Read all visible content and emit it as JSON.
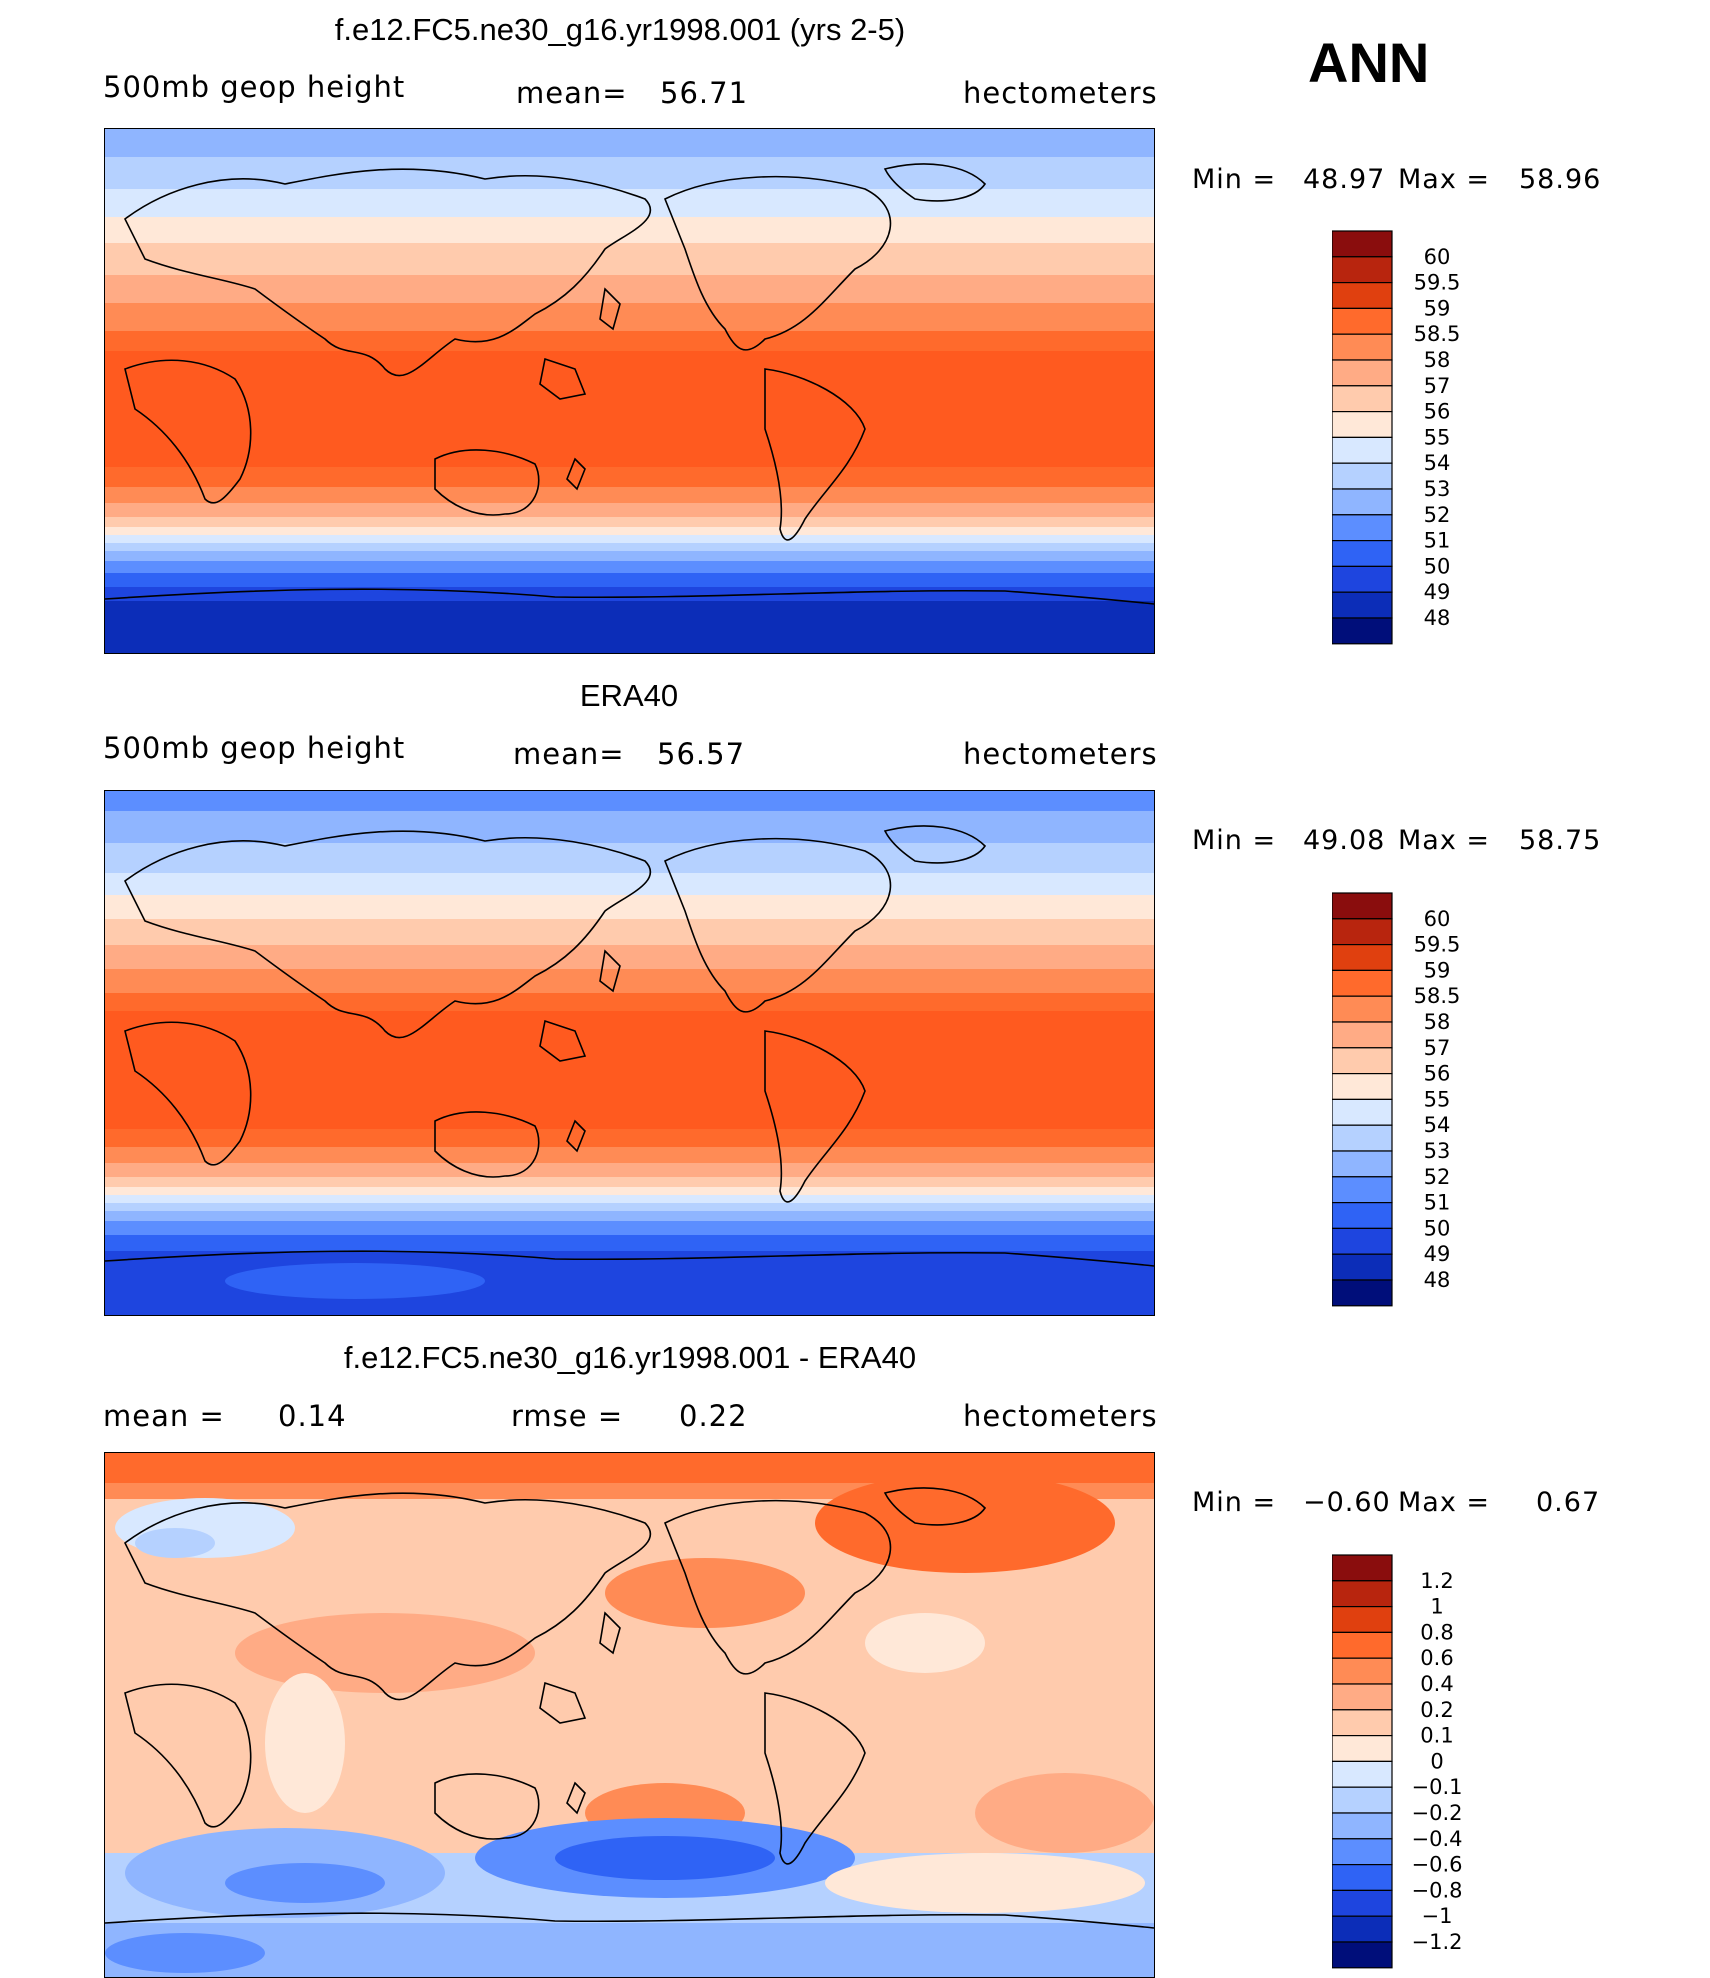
{
  "overall_label": "ANN",
  "chart_data": [
    {
      "type": "heatmap",
      "title": "f.e12.FC5.ne30_g16.yr1998.001 (yrs 2-5)",
      "left_label": "500mb geop height",
      "center_label": "mean=",
      "center_value": "56.71",
      "units": "hectometers",
      "min_label": "Min =",
      "min_value": "48.97",
      "max_label": "Max =",
      "max_value": "58.96",
      "levels": [
        "60",
        "59.5",
        "59",
        "58.5",
        "58",
        "57",
        "56",
        "55",
        "54",
        "53",
        "52",
        "51",
        "50",
        "49",
        "48"
      ],
      "colors": [
        "#8a0d0d",
        "#b8250e",
        "#e0400f",
        "#ff6a2c",
        "#ff8b55",
        "#ffab85",
        "#ffcbad",
        "#ffe8d8",
        "#d8e8ff",
        "#b5d1ff",
        "#8fb5ff",
        "#5c8eff",
        "#2f63f5",
        "#1e45df",
        "#0c2db8",
        "#000e7a"
      ]
    },
    {
      "type": "heatmap",
      "title": "ERA40",
      "left_label": "500mb geop height",
      "center_label": "mean=",
      "center_value": "56.57",
      "units": "hectometers",
      "min_label": "Min =",
      "min_value": "49.08",
      "max_label": "Max =",
      "max_value": "58.75",
      "levels": [
        "60",
        "59.5",
        "59",
        "58.5",
        "58",
        "57",
        "56",
        "55",
        "54",
        "53",
        "52",
        "51",
        "50",
        "49",
        "48"
      ],
      "colors": [
        "#8a0d0d",
        "#b8250e",
        "#e0400f",
        "#ff6a2c",
        "#ff8b55",
        "#ffab85",
        "#ffcbad",
        "#ffe8d8",
        "#d8e8ff",
        "#b5d1ff",
        "#8fb5ff",
        "#5c8eff",
        "#2f63f5",
        "#1e45df",
        "#0c2db8",
        "#000e7a"
      ]
    },
    {
      "type": "heatmap",
      "title": "f.e12.FC5.ne30_g16.yr1998.001 - ERA40",
      "left_label": "mean =",
      "left_value": "0.14",
      "center_label": "rmse =",
      "center_value": "0.22",
      "units": "hectometers",
      "min_label": "Min =",
      "min_value": "−0.60",
      "max_label": "Max =",
      "max_value": "0.67",
      "levels": [
        "1.2",
        "1",
        "0.8",
        "0.6",
        "0.4",
        "0.2",
        "0.1",
        "0",
        "−0.1",
        "−0.2",
        "−0.4",
        "−0.6",
        "−0.8",
        "−1",
        "−1.2"
      ],
      "colors": [
        "#8a0d0d",
        "#b8250e",
        "#e0400f",
        "#ff6a2c",
        "#ff8b55",
        "#ffab85",
        "#ffcbad",
        "#ffe8d8",
        "#d8e8ff",
        "#b5d1ff",
        "#8fb5ff",
        "#5c8eff",
        "#2f63f5",
        "#1e45df",
        "#0c2db8",
        "#000e7a"
      ]
    }
  ]
}
